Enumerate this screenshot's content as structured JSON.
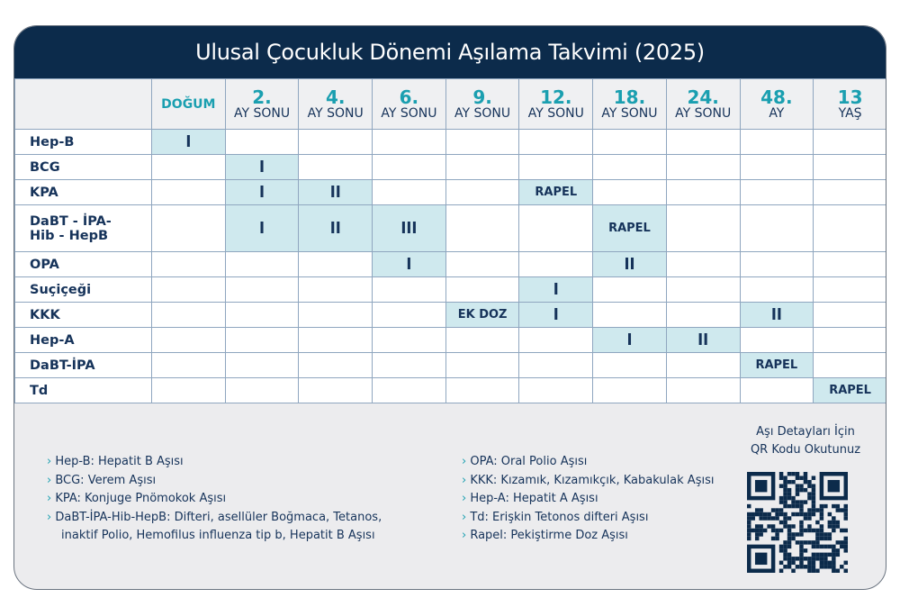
{
  "title": "Ulusal Çocukluk Dönemi Aşılama Takvimi (2025)",
  "columns": [
    {
      "num": "",
      "sub": "DOĞUM"
    },
    {
      "num": "2.",
      "sub": "AY SONU"
    },
    {
      "num": "4.",
      "sub": "AY SONU"
    },
    {
      "num": "6.",
      "sub": "AY SONU"
    },
    {
      "num": "9.",
      "sub": "AY SONU"
    },
    {
      "num": "12.",
      "sub": "AY SONU"
    },
    {
      "num": "18.",
      "sub": "AY SONU"
    },
    {
      "num": "24.",
      "sub": "AY SONU"
    },
    {
      "num": "48.",
      "sub": "AY"
    },
    {
      "num": "13",
      "sub": "YAŞ"
    }
  ],
  "rows": [
    {
      "name": "Hep-B",
      "doses": {
        "0": "I"
      }
    },
    {
      "name": "BCG",
      "doses": {
        "1": "I"
      }
    },
    {
      "name": "KPA",
      "doses": {
        "1": "I",
        "2": "II",
        "5": "RAPEL"
      }
    },
    {
      "name": "DaBT - İPA-\nHib - HepB",
      "doses": {
        "1": "I",
        "2": "II",
        "3": "III",
        "6": "RAPEL"
      }
    },
    {
      "name": "OPA",
      "doses": {
        "3": "I",
        "6": "II"
      }
    },
    {
      "name": "Suçiçeği",
      "doses": {
        "5": "I"
      }
    },
    {
      "name": "KKK",
      "doses": {
        "4": "EK DOZ",
        "5": "I",
        "8": "II"
      }
    },
    {
      "name": "Hep-A",
      "doses": {
        "6": "I",
        "7": "II"
      }
    },
    {
      "name": "DaBT-İPA",
      "doses": {
        "8": "RAPEL"
      }
    },
    {
      "name": "Td",
      "doses": {
        "9": "RAPEL"
      }
    }
  ],
  "legend_left": [
    "Hep-B: Hepatit B Aşısı",
    "BCG: Verem Aşısı",
    "KPA: Konjuge Pnömokok Aşısı",
    "DaBT-İPA-Hib-HepB: Difteri, asellüler Boğmaca, Tetanos,",
    "inaktif Polio, Hemofilus influenza tip b, Hepatit B Aşısı"
  ],
  "legend_right": [
    "OPA: Oral Polio Aşısı",
    "KKK: Kızamık, Kızamıkçık, Kabakulak Aşısı",
    "Hep-A: Hepatit A Aşısı",
    "Td: Erişkin Tetonos difteri Aşısı",
    "Rapel: Pekiştirme Doz Aşısı"
  ],
  "qr_label": [
    "Aşı Detayları İçin",
    "QR Kodu Okutunuz"
  ],
  "colors": {
    "navy": "#0c2b4b",
    "teal": "#1a9fb0",
    "highlight": "#cfe9ee",
    "text": "#16335a"
  }
}
